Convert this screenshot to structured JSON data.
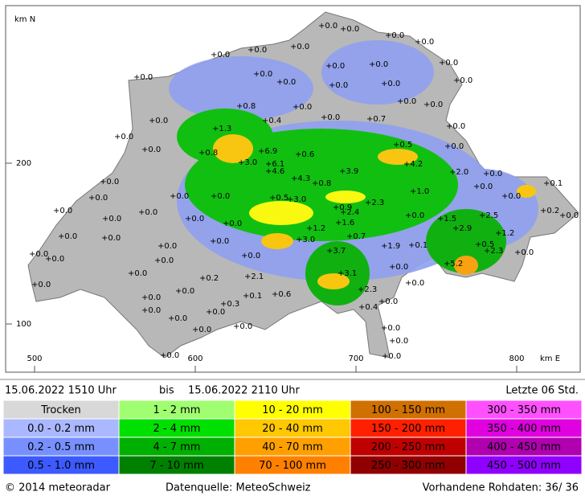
{
  "map": {
    "axis": {
      "y_label": "km N",
      "x_label": "km E",
      "xlim": [
        482,
        839.5
      ],
      "ylim": [
        70,
        298
      ],
      "xticks": [
        500,
        600,
        700,
        800
      ],
      "yticks": [
        100,
        200
      ]
    },
    "stations": [
      {
        "x": 678.5,
        "y": 285.5,
        "label": "+0.0"
      },
      {
        "x": 692,
        "y": 283.5,
        "label": "+0.0"
      },
      {
        "x": 720,
        "y": 279.5,
        "label": "+0.0"
      },
      {
        "x": 738.5,
        "y": 275.5,
        "label": "+0.0"
      },
      {
        "x": 661,
        "y": 272.5,
        "label": "+0.0"
      },
      {
        "x": 634.5,
        "y": 270.5,
        "label": "+0.0"
      },
      {
        "x": 611.5,
        "y": 267.5,
        "label": "+0.0"
      },
      {
        "x": 683,
        "y": 260.5,
        "label": "+0.0"
      },
      {
        "x": 710,
        "y": 261.5,
        "label": "+0.0"
      },
      {
        "x": 753.5,
        "y": 262.5,
        "label": "+0.0"
      },
      {
        "x": 762.5,
        "y": 251.5,
        "label": "+0.0"
      },
      {
        "x": 563.5,
        "y": 253.5,
        "label": "+0.0"
      },
      {
        "x": 638,
        "y": 255.5,
        "label": "+0.0"
      },
      {
        "x": 652.5,
        "y": 250.5,
        "label": "+0.0"
      },
      {
        "x": 685,
        "y": 248.5,
        "label": "+0.0"
      },
      {
        "x": 717.5,
        "y": 249.5,
        "label": "+0.0"
      },
      {
        "x": 627.5,
        "y": 235.5,
        "label": "+0.8"
      },
      {
        "x": 662.5,
        "y": 235,
        "label": "+0.0"
      },
      {
        "x": 727.5,
        "y": 238.5,
        "label": "+0.0"
      },
      {
        "x": 744,
        "y": 236.5,
        "label": "+0.0"
      },
      {
        "x": 573,
        "y": 226.5,
        "label": "+0.0"
      },
      {
        "x": 643.5,
        "y": 226.5,
        "label": "+0.4"
      },
      {
        "x": 680,
        "y": 228.5,
        "label": "+0.0"
      },
      {
        "x": 708.5,
        "y": 227.5,
        "label": "+0.7"
      },
      {
        "x": 612.5,
        "y": 221.5,
        "label": "+1.3"
      },
      {
        "x": 551.5,
        "y": 216.5,
        "label": "+0.0"
      },
      {
        "x": 758,
        "y": 223,
        "label": "+0.0"
      },
      {
        "x": 568.5,
        "y": 208.5,
        "label": "+0.0"
      },
      {
        "x": 604,
        "y": 206.5,
        "label": "+0.8"
      },
      {
        "x": 641,
        "y": 207.5,
        "label": "+6.9"
      },
      {
        "x": 664,
        "y": 205.5,
        "label": "+0.6"
      },
      {
        "x": 725,
        "y": 211.5,
        "label": "+0.5"
      },
      {
        "x": 757,
        "y": 210.5,
        "label": "+0.0"
      },
      {
        "x": 628.5,
        "y": 200.5,
        "label": "+3.0"
      },
      {
        "x": 645.5,
        "y": 199.5,
        "label": "+6.1"
      },
      {
        "x": 731.5,
        "y": 199.5,
        "label": "+4.2"
      },
      {
        "x": 760,
        "y": 194.5,
        "label": "+2.0"
      },
      {
        "x": 781,
        "y": 193.5,
        "label": "+0.0"
      },
      {
        "x": 645.5,
        "y": 195,
        "label": "+4.6"
      },
      {
        "x": 691.5,
        "y": 195,
        "label": "+3.9"
      },
      {
        "x": 661.5,
        "y": 190.5,
        "label": "+4.3"
      },
      {
        "x": 674.5,
        "y": 187.5,
        "label": "+0.8"
      },
      {
        "x": 818.5,
        "y": 187.5,
        "label": "+0.1"
      },
      {
        "x": 542.5,
        "y": 188.5,
        "label": "+0.0"
      },
      {
        "x": 775,
        "y": 185.5,
        "label": "+0.0"
      },
      {
        "x": 792.5,
        "y": 179.5,
        "label": "+0.0"
      },
      {
        "x": 735.5,
        "y": 182.5,
        "label": "+1.0"
      },
      {
        "x": 535.5,
        "y": 178.5,
        "label": "+0.0"
      },
      {
        "x": 586,
        "y": 179.5,
        "label": "+0.0"
      },
      {
        "x": 611.5,
        "y": 179.5,
        "label": "+0.0"
      },
      {
        "x": 648,
        "y": 178.5,
        "label": "+0.5"
      },
      {
        "x": 659,
        "y": 177.5,
        "label": "+3.0"
      },
      {
        "x": 707.5,
        "y": 175.5,
        "label": "+2.3"
      },
      {
        "x": 687.5,
        "y": 172.5,
        "label": "+0.9"
      },
      {
        "x": 513.5,
        "y": 170.5,
        "label": "+0.0"
      },
      {
        "x": 566.5,
        "y": 169.5,
        "label": "+0.0"
      },
      {
        "x": 692,
        "y": 169.5,
        "label": "+2.4"
      },
      {
        "x": 732.5,
        "y": 167.5,
        "label": "+0.0"
      },
      {
        "x": 752.5,
        "y": 165.5,
        "label": "+1.5"
      },
      {
        "x": 778.5,
        "y": 167.5,
        "label": "+2.5"
      },
      {
        "x": 816.5,
        "y": 170.5,
        "label": "+0.2"
      },
      {
        "x": 828.5,
        "y": 167.5,
        "label": "+0.0"
      },
      {
        "x": 544,
        "y": 165.5,
        "label": "+0.0"
      },
      {
        "x": 595.5,
        "y": 165.5,
        "label": "+0.0"
      },
      {
        "x": 689,
        "y": 163,
        "label": "+1.6"
      },
      {
        "x": 762,
        "y": 159.5,
        "label": "+2.9"
      },
      {
        "x": 619,
        "y": 162.5,
        "label": "+0.0"
      },
      {
        "x": 516.5,
        "y": 154.5,
        "label": "+0.0"
      },
      {
        "x": 543.5,
        "y": 153.5,
        "label": "+0.0"
      },
      {
        "x": 671,
        "y": 159.5,
        "label": "+1.2"
      },
      {
        "x": 788.5,
        "y": 156.5,
        "label": "+1.2"
      },
      {
        "x": 696,
        "y": 154.5,
        "label": "+0.7"
      },
      {
        "x": 611,
        "y": 151.5,
        "label": "+0.0"
      },
      {
        "x": 664.5,
        "y": 152.5,
        "label": "+3.0"
      },
      {
        "x": 717.5,
        "y": 148.5,
        "label": "+1.9"
      },
      {
        "x": 734.5,
        "y": 149,
        "label": "+0.1"
      },
      {
        "x": 776,
        "y": 149.5,
        "label": "+0.5"
      },
      {
        "x": 578.5,
        "y": 148.5,
        "label": "+0.0"
      },
      {
        "x": 683.5,
        "y": 145.5,
        "label": "+3.7"
      },
      {
        "x": 781.5,
        "y": 145.5,
        "label": "+2.3"
      },
      {
        "x": 498.5,
        "y": 143.5,
        "label": "+0.0"
      },
      {
        "x": 508.5,
        "y": 140.5,
        "label": "+0.0"
      },
      {
        "x": 800.5,
        "y": 144.5,
        "label": "+0.0"
      },
      {
        "x": 630.5,
        "y": 142.5,
        "label": "+0.0"
      },
      {
        "x": 576.5,
        "y": 139.5,
        "label": "+0.0"
      },
      {
        "x": 722.5,
        "y": 135.5,
        "label": "+0.0"
      },
      {
        "x": 756.5,
        "y": 137.5,
        "label": "+5.2"
      },
      {
        "x": 560,
        "y": 131.5,
        "label": "+0.0"
      },
      {
        "x": 690.5,
        "y": 131.5,
        "label": "+3.1"
      },
      {
        "x": 604.5,
        "y": 128.5,
        "label": "+0.2"
      },
      {
        "x": 632.5,
        "y": 129.5,
        "label": "+2.1"
      },
      {
        "x": 732.5,
        "y": 125.5,
        "label": "+0.0"
      },
      {
        "x": 500,
        "y": 124.5,
        "label": "+0.0"
      },
      {
        "x": 589.5,
        "y": 120.5,
        "label": "+0.0"
      },
      {
        "x": 703,
        "y": 121.5,
        "label": "+2.3"
      },
      {
        "x": 631.5,
        "y": 117.5,
        "label": "+0.1"
      },
      {
        "x": 649.5,
        "y": 118.5,
        "label": "+0.6"
      },
      {
        "x": 568.5,
        "y": 116.5,
        "label": "+0.0"
      },
      {
        "x": 617.5,
        "y": 112.5,
        "label": "+0.3"
      },
      {
        "x": 716,
        "y": 114,
        "label": "+0.0"
      },
      {
        "x": 703.5,
        "y": 110.5,
        "label": "+0.4"
      },
      {
        "x": 568.5,
        "y": 108.5,
        "label": "+0.0"
      },
      {
        "x": 608.5,
        "y": 107.5,
        "label": "+0.0"
      },
      {
        "x": 585,
        "y": 103.5,
        "label": "+0.0"
      },
      {
        "x": 625.5,
        "y": 98.5,
        "label": "+0.0"
      },
      {
        "x": 717.5,
        "y": 97.5,
        "label": "+0.0"
      },
      {
        "x": 600,
        "y": 96.5,
        "label": "+0.0"
      },
      {
        "x": 722.5,
        "y": 89.5,
        "label": "+0.0"
      },
      {
        "x": 580,
        "y": 80.5,
        "label": "+0.0"
      },
      {
        "x": 718,
        "y": 80,
        "label": "+0.0"
      }
    ]
  },
  "header": {
    "period_start": "15.06.2022 1510 Uhr",
    "separator": "bis",
    "period_end": "15.06.2022 2110 Uhr",
    "duration": "Letzte 06 Std."
  },
  "legend": {
    "rows": [
      [
        {
          "label": "Trocken",
          "color": "#d8d8d8"
        },
        {
          "label": "1 - 2 mm",
          "color": "#a0ff70"
        },
        {
          "label": "10 - 20 mm",
          "color": "#ffff00"
        },
        {
          "label": "100 - 150 mm",
          "color": "#d07000"
        },
        {
          "label": "300 - 350 mm",
          "color": "#ff50ff"
        }
      ],
      [
        {
          "label": "0.0 - 0.2 mm",
          "color": "#aab8ff"
        },
        {
          "label": "2 - 4 mm",
          "color": "#00e000"
        },
        {
          "label": "20 - 40 mm",
          "color": "#ffc800"
        },
        {
          "label": "150 - 200 mm",
          "color": "#ff2000"
        },
        {
          "label": "350 - 400 mm",
          "color": "#e000e0"
        }
      ],
      [
        {
          "label": "0.2 - 0.5 mm",
          "color": "#7890ff"
        },
        {
          "label": "4 - 7 mm",
          "color": "#00b000"
        },
        {
          "label": "40 - 70 mm",
          "color": "#ffa000"
        },
        {
          "label": "200 - 250 mm",
          "color": "#c00000"
        },
        {
          "label": "400 - 450 mm",
          "color": "#b000b0"
        }
      ],
      [
        {
          "label": "0.5 - 1.0 mm",
          "color": "#3c5aff"
        },
        {
          "label": "7 - 10 mm",
          "color": "#008000"
        },
        {
          "label": "70 - 100 mm",
          "color": "#ff8000"
        },
        {
          "label": "250 - 300 mm",
          "color": "#900000"
        },
        {
          "label": "450 - 500 mm",
          "color": "#9000ff"
        }
      ]
    ]
  },
  "footer": {
    "copyright": "© 2014 meteoradar",
    "source": "Datenquelle: MeteoSchweiz",
    "raw_data": "Vorhandene Rohdaten:  36/ 36"
  }
}
